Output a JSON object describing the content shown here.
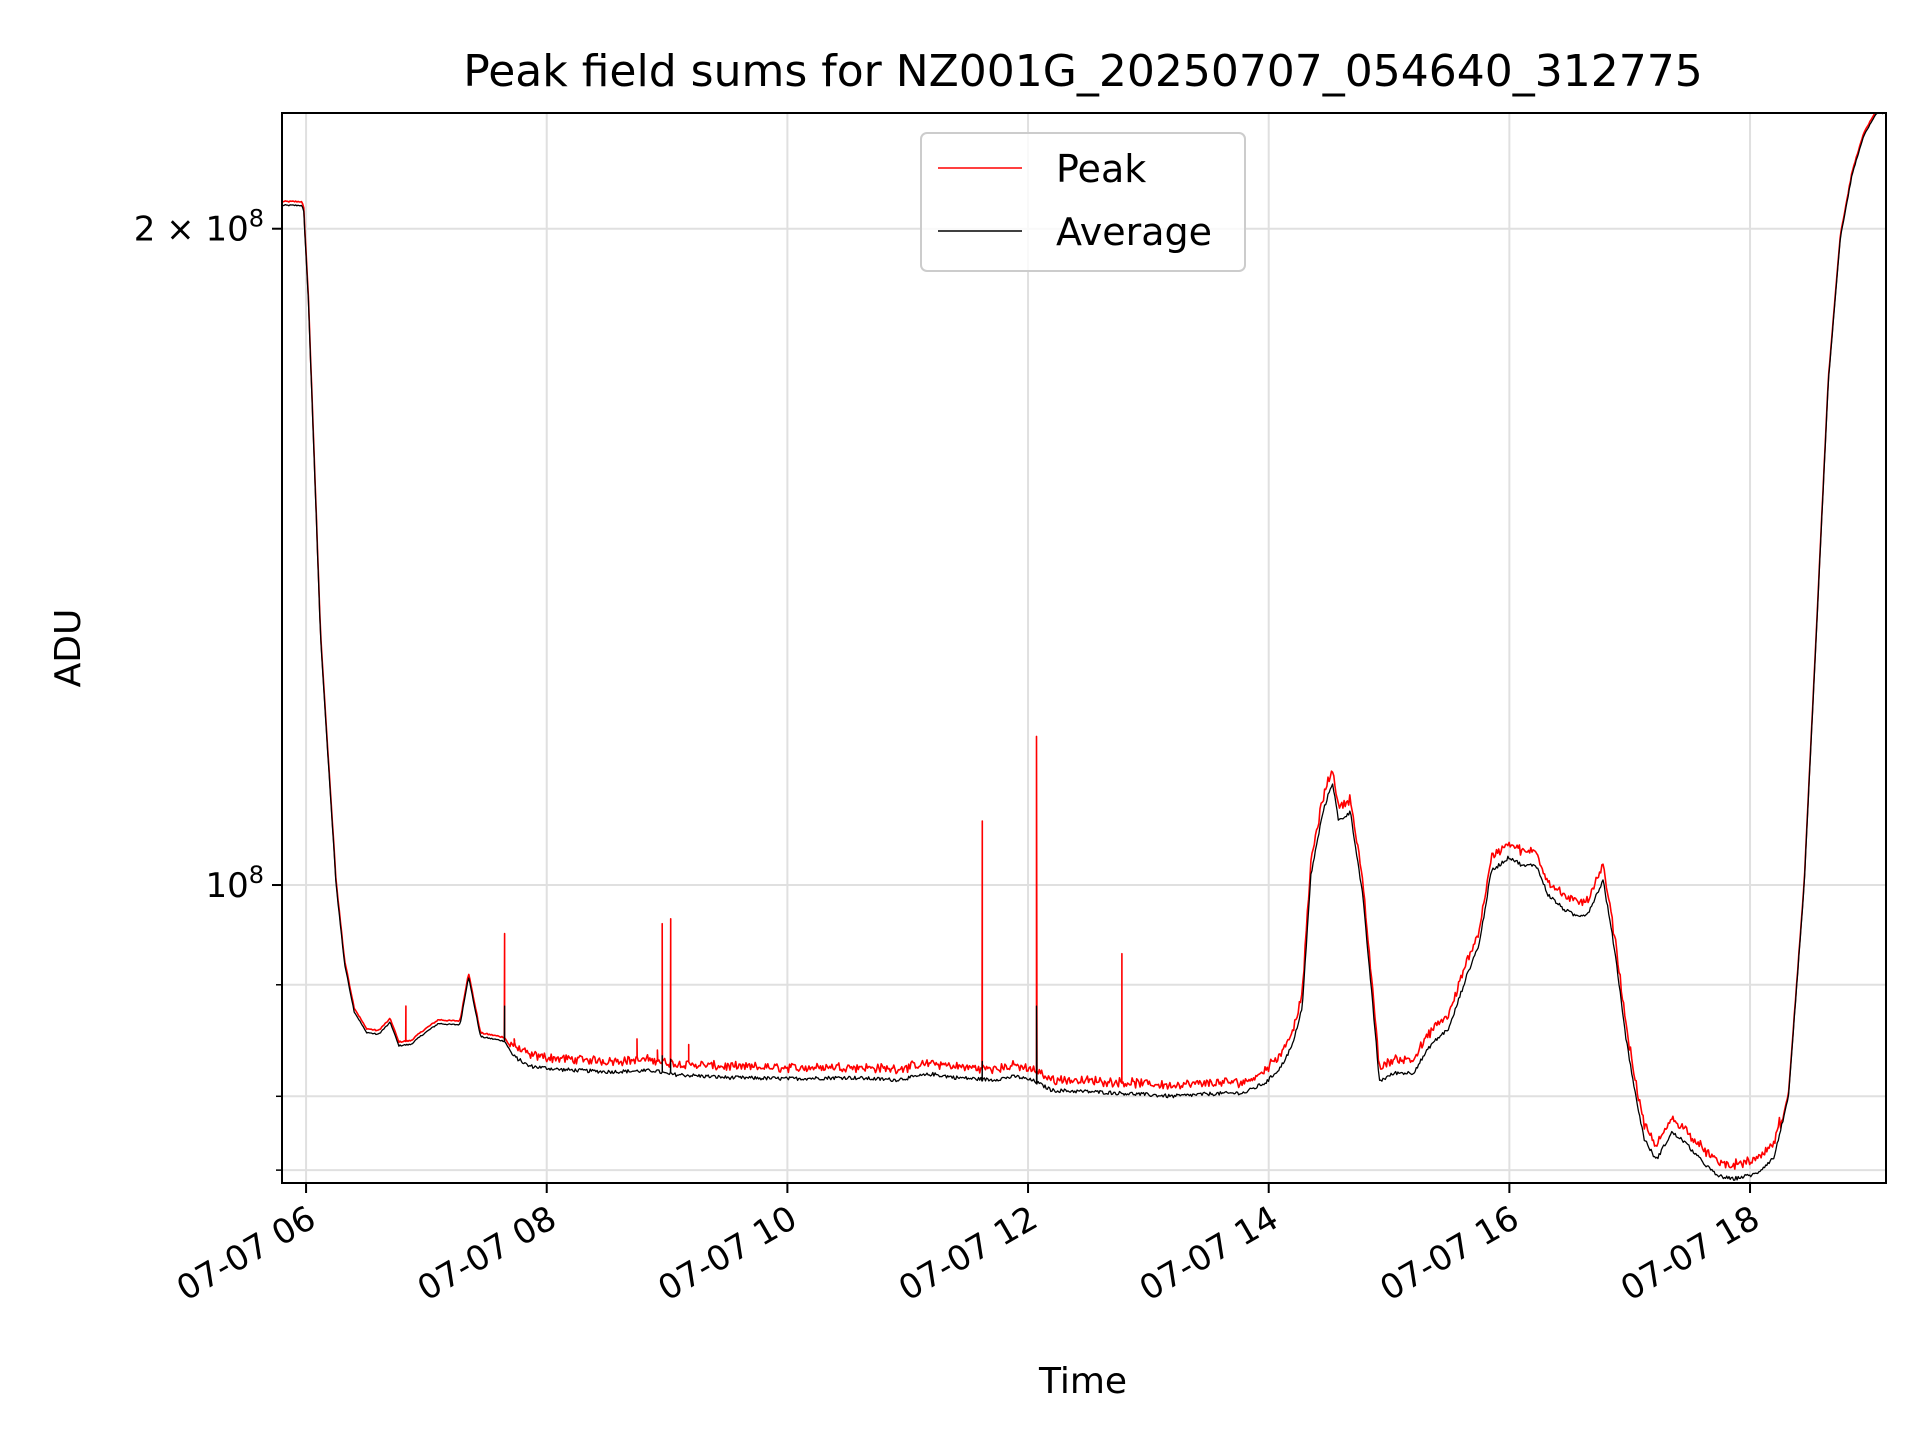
{
  "chart_data": {
    "type": "line",
    "title": "Peak field sums for NZ001G_20250707_054640_312775",
    "xlabel": "Time",
    "ylabel": "ADU",
    "yscale": "log",
    "xlim": [
      5.8,
      19.13
    ],
    "ylim": [
      73000000,
      226000000
    ],
    "x_ticks": [
      {
        "value": 6,
        "label": "07-07 06"
      },
      {
        "value": 8,
        "label": "07-07 08"
      },
      {
        "value": 10,
        "label": "07-07 10"
      },
      {
        "value": 12,
        "label": "07-07 12"
      },
      {
        "value": 14,
        "label": "07-07 14"
      },
      {
        "value": 16,
        "label": "07-07 16"
      },
      {
        "value": 18,
        "label": "07-07 18"
      }
    ],
    "y_major_ticks": [
      {
        "value": 100000000,
        "base": "10",
        "exp": "8",
        "coef": ""
      },
      {
        "value": 200000000,
        "base": "10",
        "exp": "8",
        "coef": "2"
      }
    ],
    "y_minor_ticks": [
      74000000,
      80000000,
      90000000
    ],
    "grid": true,
    "legend_position": "upper center",
    "series": [
      {
        "name": "Peak",
        "color": "#ff0000",
        "line_width": 1.2
      },
      {
        "name": "Average",
        "color": "#000000",
        "line_width": 1.2
      }
    ],
    "average_points": [
      [
        5.8,
        205000000
      ],
      [
        5.96,
        205000000
      ],
      [
        5.98,
        204000000
      ],
      [
        6.02,
        185000000
      ],
      [
        6.08,
        150000000
      ],
      [
        6.12,
        130000000
      ],
      [
        6.18,
        115000000
      ],
      [
        6.25,
        100000000
      ],
      [
        6.32,
        92000000
      ],
      [
        6.4,
        87500000
      ],
      [
        6.5,
        85600000
      ],
      [
        6.6,
        85400000
      ],
      [
        6.7,
        86500000
      ],
      [
        6.77,
        84400000
      ],
      [
        6.87,
        84500000
      ],
      [
        6.97,
        85400000
      ],
      [
        7.1,
        86400000
      ],
      [
        7.2,
        86300000
      ],
      [
        7.28,
        86300000
      ],
      [
        7.35,
        90800000
      ],
      [
        7.45,
        85200000
      ],
      [
        7.55,
        85000000
      ],
      [
        7.65,
        84800000
      ],
      [
        7.72,
        83500000
      ],
      [
        7.85,
        82600000
      ],
      [
        8.1,
        82300000
      ],
      [
        8.5,
        82100000
      ],
      [
        8.9,
        82200000
      ],
      [
        9.0,
        81900000
      ],
      [
        9.5,
        81600000
      ],
      [
        10.0,
        81500000
      ],
      [
        10.5,
        81600000
      ],
      [
        10.9,
        81400000
      ],
      [
        11.2,
        81900000
      ],
      [
        11.4,
        81600000
      ],
      [
        11.7,
        81400000
      ],
      [
        11.9,
        81700000
      ],
      [
        12.05,
        81300000
      ],
      [
        12.2,
        80500000
      ],
      [
        12.5,
        80400000
      ],
      [
        12.9,
        80200000
      ],
      [
        13.2,
        80000000
      ],
      [
        13.5,
        80200000
      ],
      [
        13.8,
        80300000
      ],
      [
        13.98,
        81200000
      ],
      [
        14.1,
        82500000
      ],
      [
        14.2,
        84500000
      ],
      [
        14.28,
        88000000
      ],
      [
        14.35,
        101000000
      ],
      [
        14.45,
        108000000
      ],
      [
        14.53,
        111500000
      ],
      [
        14.58,
        107000000
      ],
      [
        14.68,
        108000000
      ],
      [
        14.78,
        99000000
      ],
      [
        14.85,
        90000000
      ],
      [
        14.92,
        81300000
      ],
      [
        15.05,
        82000000
      ],
      [
        15.2,
        82000000
      ],
      [
        15.35,
        84500000
      ],
      [
        15.5,
        86000000
      ],
      [
        15.65,
        91000000
      ],
      [
        15.75,
        94000000
      ],
      [
        15.85,
        101500000
      ],
      [
        16.0,
        103000000
      ],
      [
        16.12,
        102000000
      ],
      [
        16.22,
        102200000
      ],
      [
        16.32,
        99000000
      ],
      [
        16.45,
        97500000
      ],
      [
        16.55,
        96800000
      ],
      [
        16.65,
        97000000
      ],
      [
        16.78,
        100500000
      ],
      [
        16.88,
        93000000
      ],
      [
        16.97,
        85000000
      ],
      [
        17.05,
        80000000
      ],
      [
        17.12,
        76500000
      ],
      [
        17.22,
        74800000
      ],
      [
        17.35,
        77000000
      ],
      [
        17.45,
        76300000
      ],
      [
        17.58,
        74900000
      ],
      [
        17.72,
        73600000
      ],
      [
        17.85,
        73300000
      ],
      [
        18.05,
        73700000
      ],
      [
        18.2,
        75000000
      ],
      [
        18.32,
        80000000
      ],
      [
        18.45,
        100000000
      ],
      [
        18.55,
        130000000
      ],
      [
        18.65,
        170000000
      ],
      [
        18.75,
        198000000
      ],
      [
        18.85,
        212000000
      ],
      [
        18.95,
        221000000
      ],
      [
        19.05,
        226000000
      ],
      [
        19.13,
        226000000
      ]
    ],
    "peak_offsets": [
      {
        "x_from": 5.8,
        "x_to": 7.7,
        "ratio": 1.004
      },
      {
        "x_from": 7.7,
        "x_to": 13.95,
        "ratio": 1.01
      },
      {
        "x_from": 13.95,
        "x_to": 18.25,
        "ratio": 1.013
      },
      {
        "x_from": 18.25,
        "x_to": 19.13,
        "ratio": 1.003
      }
    ],
    "peak_spikes": [
      {
        "x": 6.83,
        "value": 88000000
      },
      {
        "x": 7.65,
        "value": 95000000
      },
      {
        "x": 7.73,
        "value": 85000000
      },
      {
        "x": 8.75,
        "value": 85000000
      },
      {
        "x": 8.92,
        "value": 84000000
      },
      {
        "x": 8.96,
        "value": 96000000
      },
      {
        "x": 9.03,
        "value": 96500000
      },
      {
        "x": 9.18,
        "value": 84500000
      },
      {
        "x": 11.62,
        "value": 107000000
      },
      {
        "x": 12.07,
        "value": 117000000
      },
      {
        "x": 12.78,
        "value": 93000000
      }
    ],
    "average_spikes": [
      {
        "x": 7.65,
        "value": 88000000
      },
      {
        "x": 8.96,
        "value": 83500000
      },
      {
        "x": 9.03,
        "value": 83200000
      },
      {
        "x": 11.62,
        "value": 83000000
      },
      {
        "x": 12.07,
        "value": 88000000
      }
    ]
  }
}
